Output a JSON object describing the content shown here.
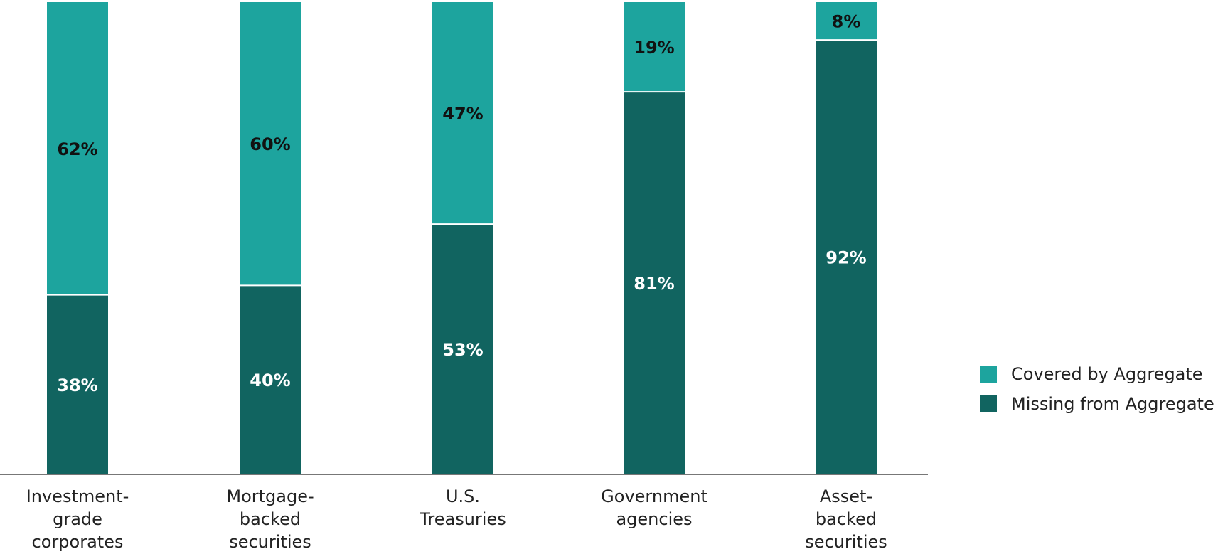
{
  "chart_data": {
    "type": "bar",
    "stacked": true,
    "categories": [
      [
        "Investment-",
        "grade",
        "corporates"
      ],
      [
        "Mortgage-",
        "backed",
        "securities"
      ],
      [
        "U.S.",
        "Treasuries"
      ],
      [
        "Government",
        "agencies"
      ],
      [
        "Asset-",
        "backed",
        "securities"
      ]
    ],
    "series": [
      {
        "name": "Missing from Aggregate",
        "values": [
          38,
          40,
          53,
          81,
          92
        ],
        "labels": [
          "38%",
          "40%",
          "53%",
          "81%",
          "92%"
        ],
        "color": "#116460",
        "label_color": "#ffffff"
      },
      {
        "name": "Covered by Aggregate",
        "values": [
          62,
          60,
          47,
          19,
          8
        ],
        "labels": [
          "62%",
          "60%",
          "47%",
          "19%",
          "8%"
        ],
        "color": "#1da49e",
        "label_color": "#111111"
      }
    ],
    "ylim": [
      0,
      100
    ],
    "grid": false,
    "legend_position": "right",
    "legend": [
      {
        "name": "Covered by Aggregate",
        "color": "#1da49e"
      },
      {
        "name": "Missing from Aggregate",
        "color": "#116460"
      }
    ]
  }
}
